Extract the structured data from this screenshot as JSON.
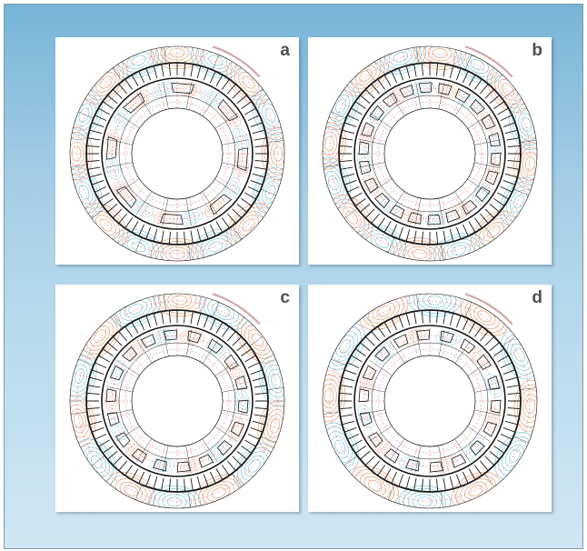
{
  "panels": [
    {
      "label": "a"
    },
    {
      "label": "b"
    },
    {
      "label": "c"
    },
    {
      "label": "d"
    }
  ],
  "colors": {
    "frame_gradient_top": "#78b4d8",
    "frame_gradient_bottom": "#cfe6f2",
    "panel_background": "#ffffff",
    "flux_positive": "#e07a3c",
    "flux_negative": "#49b3d8",
    "mesh_red": "#e0606a",
    "geometry": "#1a1a1a",
    "accent_arc": "#c08080"
  }
}
